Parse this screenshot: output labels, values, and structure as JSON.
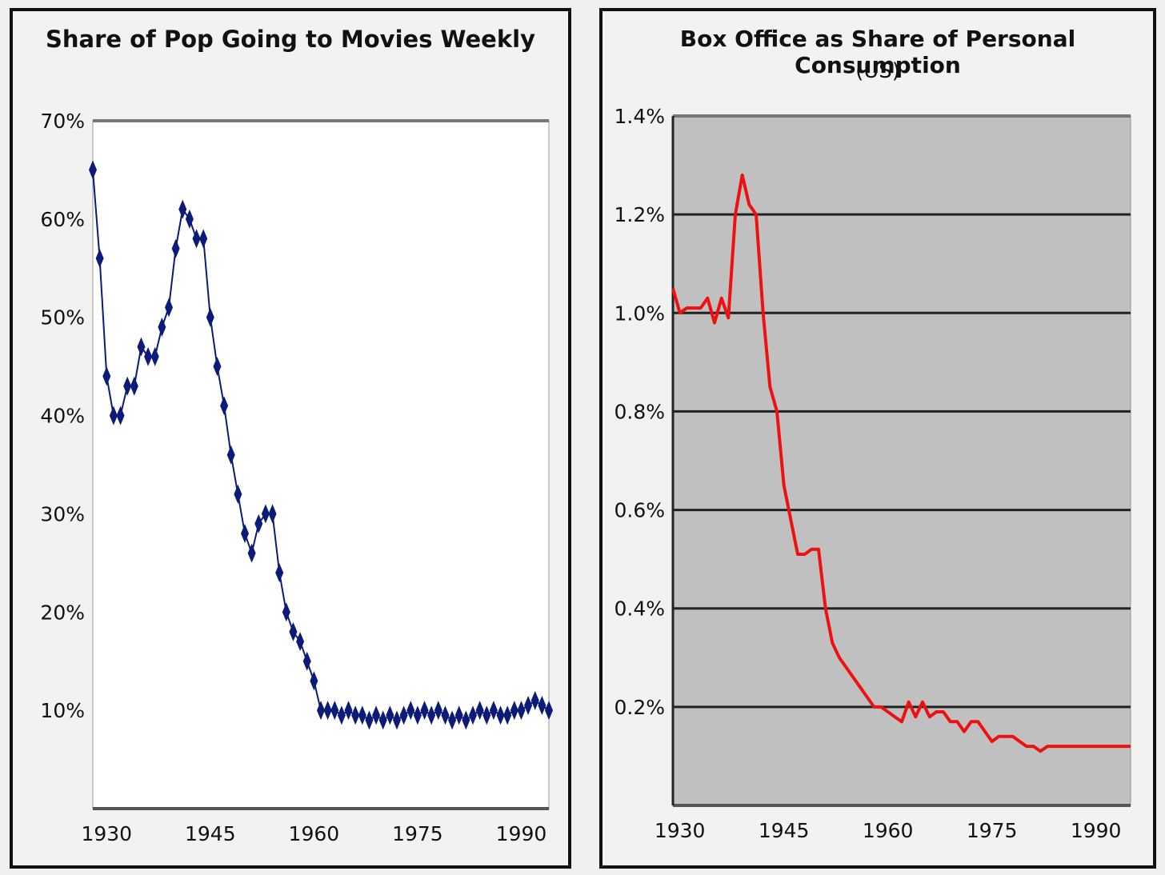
{
  "chart_data": [
    {
      "type": "line",
      "title": "Share of Pop Going to Movies Weekly",
      "subtitle": "",
      "xlabel": "",
      "ylabel": "",
      "xlim": [
        1928,
        1994
      ],
      "ylim": [
        0,
        70
      ],
      "x_ticks": [
        "1930",
        "1945",
        "1960",
        "1975",
        "1990"
      ],
      "y_ticks": [
        "10%",
        "20%",
        "30%",
        "40%",
        "50%",
        "60%",
        "70%"
      ],
      "marker": "diamond",
      "line_color": "#0c1a78",
      "background": "#ffffff",
      "grid": false,
      "series": [
        {
          "x": [
            1928,
            1929,
            1930,
            1931,
            1932,
            1933,
            1934,
            1935,
            1936,
            1937,
            1938,
            1939,
            1940,
            1941,
            1942,
            1943,
            1944,
            1945,
            1946,
            1947,
            1948,
            1949,
            1950,
            1951,
            1952,
            1953,
            1954,
            1955,
            1956,
            1957,
            1958,
            1959,
            1960,
            1961,
            1962,
            1963,
            1964,
            1965,
            1966,
            1967,
            1968,
            1969,
            1970,
            1971,
            1972,
            1973,
            1974,
            1975,
            1976,
            1977,
            1978,
            1979,
            1980,
            1981,
            1982,
            1983,
            1984,
            1985,
            1986,
            1987,
            1988,
            1989,
            1990,
            1991,
            1992,
            1993,
            1994
          ],
          "values": [
            65,
            56,
            44,
            40,
            40,
            43,
            43,
            47,
            46,
            46,
            49,
            51,
            57,
            61,
            60,
            58,
            58,
            50,
            45,
            41,
            36,
            32,
            28,
            26,
            29,
            30,
            30,
            24,
            20,
            18,
            17,
            15,
            13,
            10,
            10,
            10,
            9.5,
            10,
            9.5,
            9.5,
            9,
            9.5,
            9,
            9.5,
            9,
            9.5,
            10,
            9.5,
            10,
            9.5,
            10,
            9.5,
            9,
            9.5,
            9,
            9.5,
            10,
            9.5,
            10,
            9.5,
            9.5,
            10,
            10,
            10.5,
            11,
            10.5,
            10
          ]
        }
      ]
    },
    {
      "type": "line",
      "title": "Box Office as Share of Personal Consumption",
      "subtitle": "(US)",
      "xlabel": "",
      "ylabel": "",
      "xlim": [
        1929,
        1995
      ],
      "ylim": [
        0,
        1.4
      ],
      "x_ticks": [
        "1930",
        "1945",
        "1960",
        "1975",
        "1990"
      ],
      "y_ticks": [
        "0.2%",
        "0.4%",
        "0.6%",
        "0.8%",
        "1.0%",
        "1.2%",
        "1.4%"
      ],
      "line_color": "#ee1111",
      "background": "#c0c0c0",
      "grid": true,
      "series": [
        {
          "x": [
            1929,
            1930,
            1931,
            1932,
            1933,
            1934,
            1935,
            1936,
            1937,
            1938,
            1939,
            1940,
            1941,
            1942,
            1943,
            1944,
            1945,
            1946,
            1947,
            1948,
            1949,
            1950,
            1951,
            1952,
            1953,
            1954,
            1955,
            1956,
            1957,
            1958,
            1959,
            1960,
            1961,
            1962,
            1963,
            1964,
            1965,
            1966,
            1967,
            1968,
            1969,
            1970,
            1971,
            1972,
            1973,
            1974,
            1975,
            1976,
            1977,
            1978,
            1979,
            1980,
            1981,
            1982,
            1983,
            1984,
            1985,
            1986,
            1987,
            1988,
            1989,
            1990,
            1991,
            1992,
            1993,
            1994,
            1995
          ],
          "values": [
            1.05,
            1.0,
            1.01,
            1.01,
            1.01,
            1.03,
            0.98,
            1.03,
            0.99,
            1.2,
            1.28,
            1.22,
            1.2,
            1.0,
            0.85,
            0.8,
            0.65,
            0.58,
            0.51,
            0.51,
            0.52,
            0.52,
            0.4,
            0.33,
            0.3,
            0.28,
            0.26,
            0.24,
            0.22,
            0.2,
            0.2,
            0.19,
            0.18,
            0.17,
            0.21,
            0.18,
            0.21,
            0.18,
            0.19,
            0.19,
            0.17,
            0.17,
            0.15,
            0.17,
            0.17,
            0.15,
            0.13,
            0.14,
            0.14,
            0.14,
            0.13,
            0.12,
            0.12,
            0.11,
            0.12,
            0.12,
            0.12,
            0.12,
            0.12,
            0.12,
            0.12,
            0.12,
            0.12,
            0.12,
            0.12,
            0.12,
            0.12
          ]
        }
      ]
    }
  ]
}
